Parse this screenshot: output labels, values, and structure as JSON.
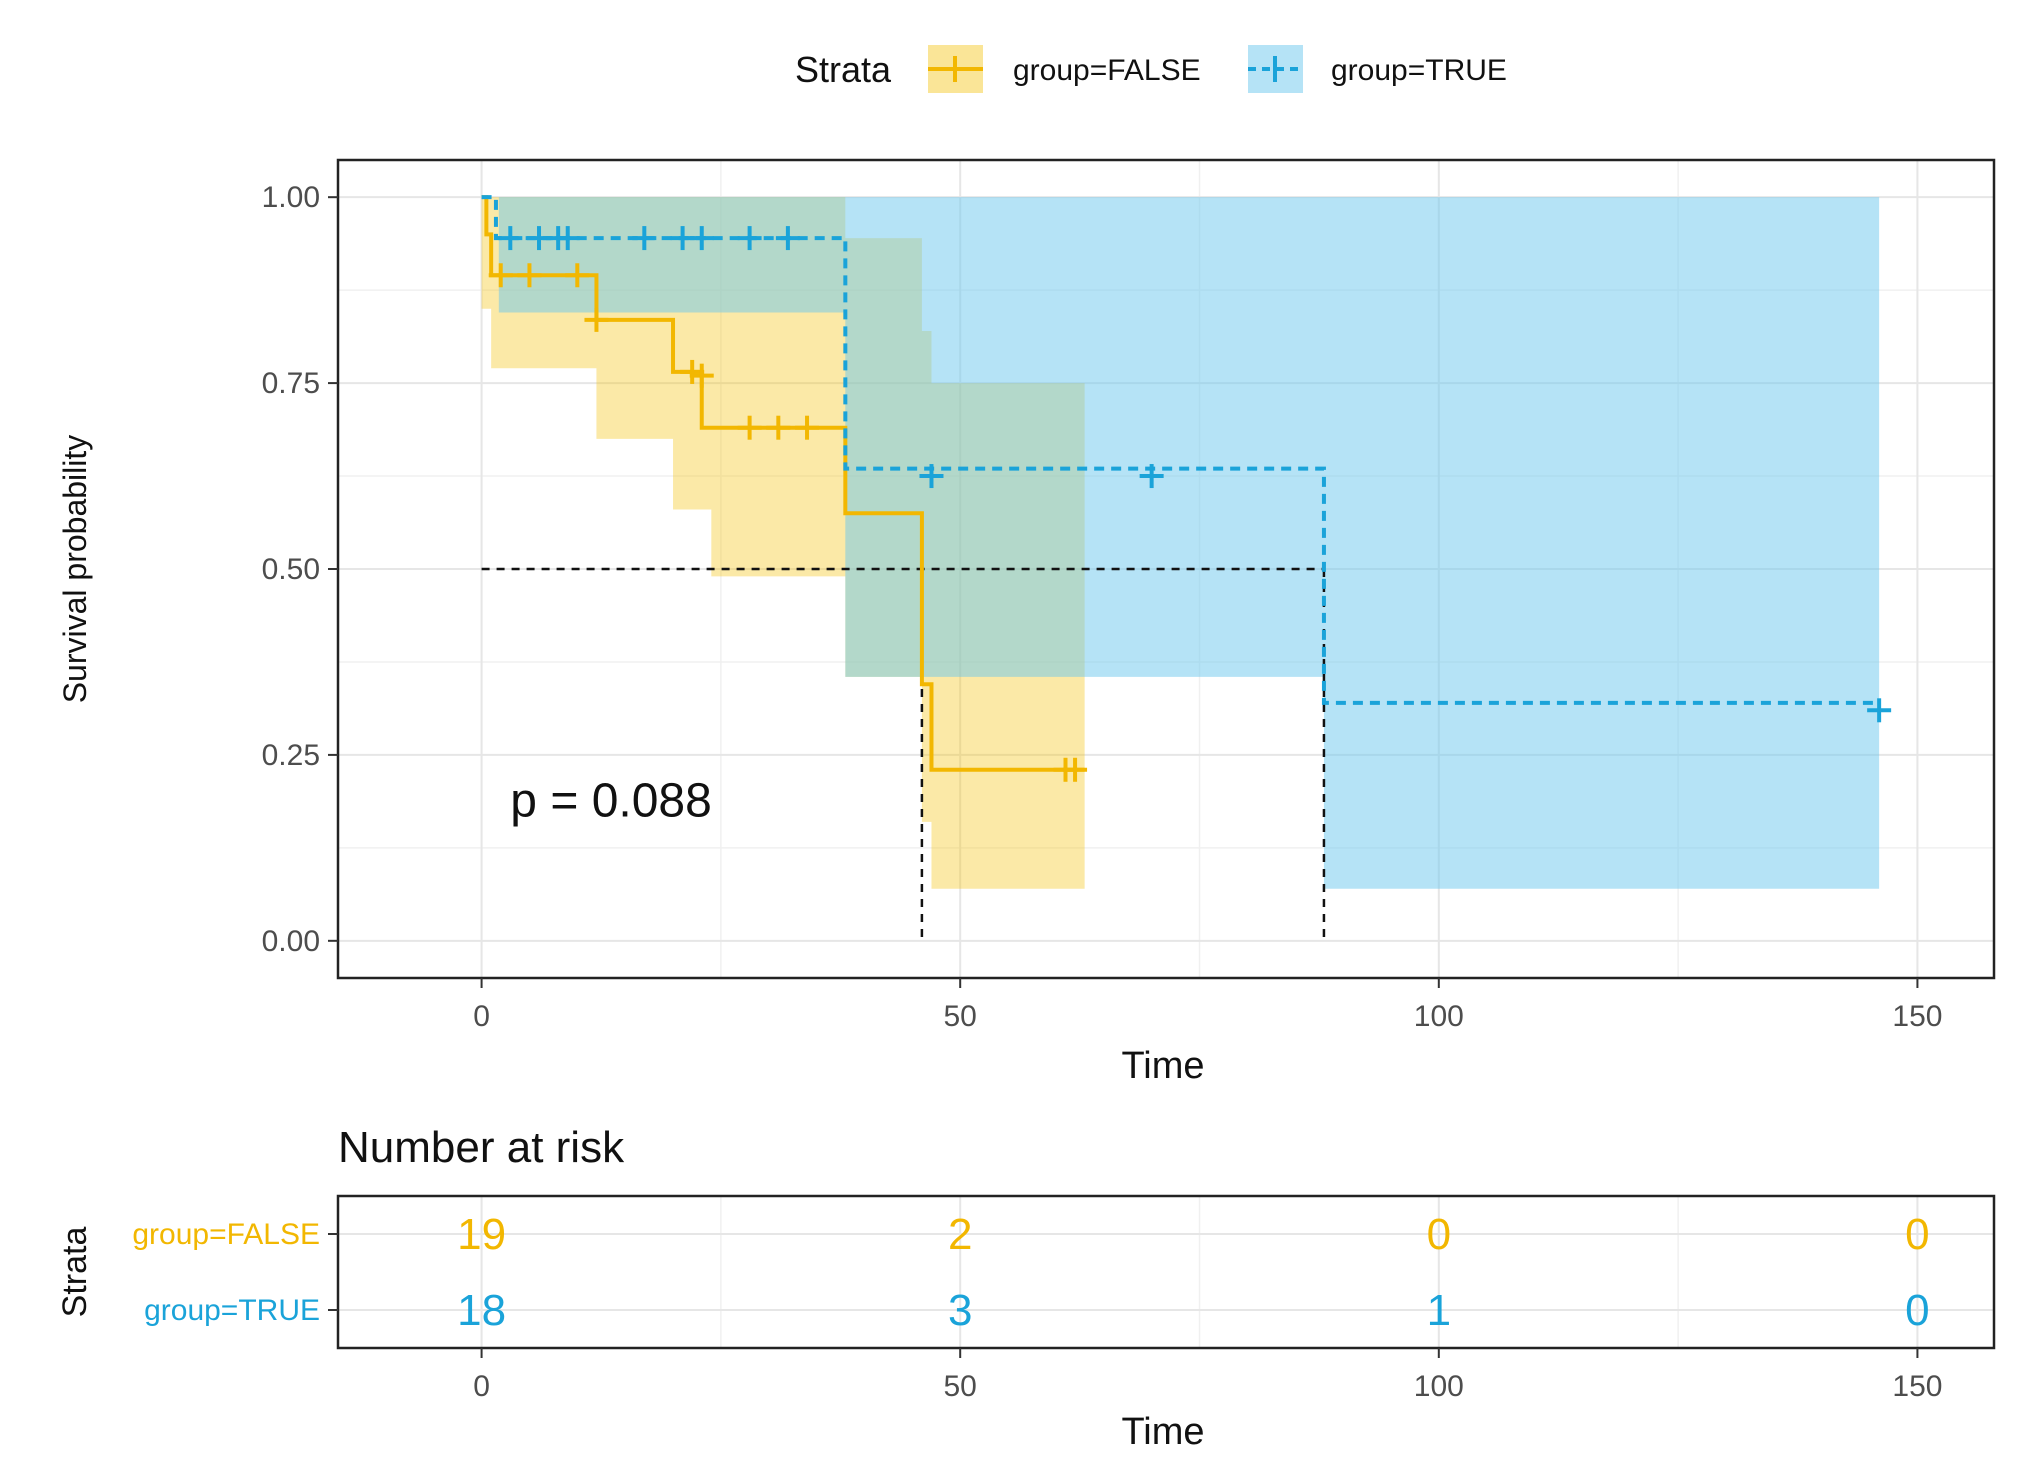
{
  "chart_data": [
    {
      "type": "line",
      "subtype": "kaplan-meier",
      "title": "",
      "xlabel": "Time",
      "ylabel": "Survival probability",
      "xlim": [
        -15,
        158
      ],
      "ylim": [
        -0.05,
        1.05
      ],
      "x_ticks": [
        0,
        50,
        100,
        150
      ],
      "x_tick_labels": [
        "0",
        "50",
        "100",
        "150"
      ],
      "y_ticks": [
        0,
        0.25,
        0.5,
        0.75,
        1
      ],
      "y_tick_labels": [
        "0.00",
        "0.25",
        "0.50",
        "0.75",
        "1.00"
      ],
      "grid": true,
      "legend": {
        "title": "Strata",
        "position": "top",
        "entries": [
          "group=FALSE",
          "group=TRUE"
        ]
      },
      "annotation": "p = 0.088",
      "annotation_x": 3,
      "annotation_y": 0.19,
      "median_line": {
        "y": 0.5,
        "x_false": 46,
        "x_true": 88
      },
      "series": [
        {
          "name": "group=FALSE",
          "color": "#F2B701",
          "band_color": "#F5C518",
          "dash": "solid",
          "steps": [
            [
              0,
              1.0
            ],
            [
              0.5,
              0.95
            ],
            [
              1,
              0.895
            ],
            [
              12,
              0.835
            ],
            [
              20,
              0.765
            ],
            [
              23,
              0.69
            ],
            [
              38,
              0.575
            ],
            [
              46,
              0.345
            ],
            [
              47,
              0.23
            ],
            [
              63,
              0.23
            ]
          ],
          "ci_steps": [
            [
              0,
              1.0,
              0.85
            ],
            [
              1,
              1.0,
              0.77
            ],
            [
              12,
              1.0,
              0.675
            ],
            [
              20,
              1.0,
              0.58
            ],
            [
              24,
              1.0,
              0.49
            ],
            [
              38,
              0.945,
              0.355
            ],
            [
              46,
              0.82,
              0.16
            ],
            [
              47,
              0.75,
              0.07
            ],
            [
              63,
              0.75,
              0.07
            ]
          ],
          "censor_x": [
            2,
            5,
            10,
            12,
            22,
            23,
            28,
            31,
            34,
            61,
            62
          ],
          "censor_y": [
            0.895,
            0.895,
            0.895,
            0.835,
            0.765,
            0.76,
            0.69,
            0.69,
            0.69,
            0.23,
            0.23
          ]
        },
        {
          "name": "group=TRUE",
          "color": "#1AA3D9",
          "band_color": "#6CC8EE",
          "dash": "dashed",
          "steps": [
            [
              0,
              1.0
            ],
            [
              1.5,
              0.945
            ],
            [
              38,
              0.635
            ],
            [
              88,
              0.32
            ],
            [
              146,
              0.32
            ]
          ],
          "ci_steps": [
            [
              0,
              1.0,
              1.0
            ],
            [
              1.8,
              1.0,
              0.845
            ],
            [
              38,
              1.0,
              0.355
            ],
            [
              88,
              1.0,
              0.07
            ],
            [
              146,
              1.0,
              0.07
            ]
          ],
          "censor_x": [
            3,
            6,
            8,
            9,
            17,
            21,
            23,
            28,
            32,
            47,
            70,
            146
          ],
          "censor_y": [
            0.945,
            0.945,
            0.945,
            0.945,
            0.945,
            0.945,
            0.945,
            0.945,
            0.945,
            0.625,
            0.625,
            0.31
          ]
        }
      ]
    },
    {
      "type": "table",
      "title": "Number at risk",
      "xlabel": "Time",
      "ylabel": "Strata",
      "xlim": [
        -15,
        158
      ],
      "x_ticks": [
        0,
        50,
        100,
        150
      ],
      "x_tick_labels": [
        "0",
        "50",
        "100",
        "150"
      ],
      "rows": [
        {
          "label": "group=FALSE",
          "color": "#F2B701",
          "x": [
            0,
            50,
            100,
            150
          ],
          "values": [
            "19",
            "2",
            "0",
            "0"
          ]
        },
        {
          "label": "group=TRUE",
          "color": "#1AA3D9",
          "x": [
            0,
            50,
            100,
            150
          ],
          "values": [
            "18",
            "3",
            "1",
            "0"
          ]
        }
      ]
    }
  ]
}
